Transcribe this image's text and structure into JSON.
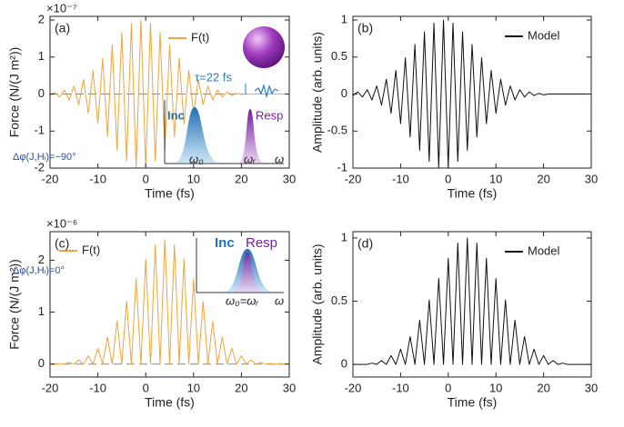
{
  "chart_data": [
    {
      "type": "line",
      "panel_label": "(a)",
      "xlabel": "Time (fs)",
      "ylabel": "Force (N/(J m²))",
      "y_multiplier": "×10⁻⁷",
      "xlim": [
        -20,
        30
      ],
      "xticks": [
        -20,
        -10,
        0,
        10,
        20,
        30
      ],
      "ylim": [
        -2,
        2.1
      ],
      "yticks": [
        -2,
        -1,
        0,
        1,
        2
      ],
      "zero_line": true,
      "legend": "top-center",
      "x": [
        -20,
        -19,
        -18,
        -17,
        -16,
        -15,
        -14,
        -13,
        -12,
        -11,
        -10,
        -9,
        -8,
        -7,
        -6,
        -5,
        -4,
        -3,
        -2,
        -1,
        0,
        1,
        2,
        3,
        4,
        5,
        6,
        7,
        8,
        9,
        10,
        11,
        12,
        13,
        14,
        15,
        16,
        17,
        18,
        19,
        20,
        21,
        22,
        23,
        24,
        25,
        26,
        27,
        28,
        29,
        30
      ],
      "series": [
        {
          "name": "F(t)",
          "color": "#f2a33a",
          "values": [
            -0.03,
            0.05,
            -0.08,
            0.11,
            -0.16,
            0.22,
            -0.29,
            0.39,
            -0.51,
            0.64,
            -0.8,
            0.97,
            -1.15,
            1.33,
            -1.51,
            1.67,
            -1.81,
            1.91,
            -1.98,
            2,
            -1.98,
            1.91,
            -1.81,
            1.67,
            -1.51,
            1.33,
            -1.15,
            0.97,
            -0.8,
            0.64,
            -0.51,
            0.39,
            -0.29,
            0.22,
            -0.16,
            0.11,
            -0.08,
            0.05,
            -0.03,
            0.02,
            -0.01,
            0,
            0,
            0,
            0,
            0,
            0,
            0,
            0,
            0,
            0
          ]
        }
      ],
      "annotations": [
        "Inc",
        "Resp",
        "ω₀",
        "ωᵣ",
        "ω",
        "τ=22 fs",
        "Δφ(J,Hᵢ)=−90°"
      ]
    },
    {
      "type": "line",
      "panel_label": "(b)",
      "xlabel": "Time (fs)",
      "ylabel": "Amplitude (arb. units)",
      "xlim": [
        -20,
        30
      ],
      "xticks": [
        -20,
        -10,
        0,
        10,
        20,
        30
      ],
      "ylim": [
        -1,
        1.05
      ],
      "yticks": [
        -1,
        -0.5,
        0,
        0.5,
        1
      ],
      "zero_line": false,
      "legend": "top-right",
      "x": [
        -20,
        -19,
        -18,
        -17,
        -16,
        -15,
        -14,
        -13,
        -12,
        -11,
        -10,
        -9,
        -8,
        -7,
        -6,
        -5,
        -4,
        -3,
        -2,
        -1,
        0,
        1,
        2,
        3,
        4,
        5,
        6,
        7,
        8,
        9,
        10,
        11,
        12,
        13,
        14,
        15,
        16,
        17,
        18,
        19,
        20,
        21,
        22,
        23,
        24,
        25,
        26,
        27,
        28,
        29,
        30
      ],
      "series": [
        {
          "name": "Model",
          "color": "#111111",
          "values": [
            -0.02,
            0.03,
            -0.04,
            0.06,
            -0.08,
            0.11,
            -0.15,
            0.2,
            -0.26,
            0.32,
            -0.4,
            0.49,
            -0.58,
            0.67,
            -0.76,
            0.84,
            -0.91,
            0.96,
            -0.99,
            1,
            -0.99,
            0.96,
            -0.91,
            0.84,
            -0.76,
            0.67,
            -0.58,
            0.49,
            -0.4,
            0.32,
            -0.26,
            0.2,
            -0.15,
            0.11,
            -0.08,
            0.06,
            -0.04,
            0.03,
            -0.02,
            0.01,
            -0.01,
            0,
            0,
            0,
            0,
            0,
            0,
            0,
            0,
            0,
            0
          ]
        }
      ]
    },
    {
      "type": "line",
      "panel_label": "(c)",
      "xlabel": "Time (fs)",
      "ylabel": "Force (N/(J m²))",
      "y_multiplier": "×10⁻⁶",
      "xlim": [
        -20,
        30
      ],
      "xticks": [
        -20,
        -10,
        0,
        10,
        20,
        30
      ],
      "ylim": [
        -0.25,
        2.55
      ],
      "yticks": [
        0,
        1,
        2
      ],
      "zero_line": true,
      "legend": "top-left",
      "x": [
        -20,
        -19,
        -18,
        -17,
        -16,
        -15,
        -14,
        -13,
        -12,
        -11,
        -10,
        -9,
        -8,
        -7,
        -6,
        -5,
        -4,
        -3,
        -2,
        -1,
        0,
        1,
        2,
        3,
        4,
        5,
        6,
        7,
        8,
        9,
        10,
        11,
        12,
        13,
        14,
        15,
        16,
        17,
        18,
        19,
        20,
        21,
        22,
        23,
        24,
        25,
        26,
        27,
        28,
        29,
        30
      ],
      "series": [
        {
          "name": "F(t)",
          "color": "#f2a33a",
          "values": [
            0.01,
            0,
            0.01,
            0,
            0.03,
            0,
            0.08,
            0,
            0.16,
            0,
            0.3,
            0,
            0.52,
            0,
            0.83,
            0,
            1.21,
            0,
            1.64,
            0,
            2.02,
            0,
            2.3,
            0,
            2.4,
            0,
            2.3,
            0,
            2.02,
            0,
            1.64,
            0,
            1.21,
            0,
            0.83,
            0,
            0.52,
            0,
            0.3,
            0,
            0.16,
            0,
            0.08,
            0,
            0.03,
            0,
            0.01,
            0,
            0.01,
            0,
            0
          ]
        }
      ],
      "annotations": [
        "Inc",
        "Resp",
        "ω₀=ωᵣ",
        "ω",
        "Δφ(J,Hᵢ)=0°"
      ]
    },
    {
      "type": "line",
      "panel_label": "(d)",
      "xlabel": "Time (fs)",
      "ylabel": "Amplitude (arb. units)",
      "xlim": [
        -20,
        30
      ],
      "xticks": [
        -20,
        -10,
        0,
        10,
        20,
        30
      ],
      "ylim": [
        -0.1,
        1.05
      ],
      "yticks": [
        0,
        0.5,
        1
      ],
      "zero_line": false,
      "legend": "top-right",
      "x": [
        -20,
        -19,
        -18,
        -17,
        -16,
        -15,
        -14,
        -13,
        -12,
        -11,
        -10,
        -9,
        -8,
        -7,
        -6,
        -5,
        -4,
        -3,
        -2,
        -1,
        0,
        1,
        2,
        3,
        4,
        5,
        6,
        7,
        8,
        9,
        10,
        11,
        12,
        13,
        14,
        15,
        16,
        17,
        18,
        19,
        20,
        21,
        22,
        23,
        24,
        25,
        26,
        27,
        28,
        29,
        30
      ],
      "series": [
        {
          "name": "Model",
          "color": "#111111",
          "values": [
            0,
            0,
            0,
            0,
            0.01,
            0,
            0.03,
            0,
            0.07,
            0,
            0.12,
            0,
            0.22,
            0,
            0.35,
            0,
            0.51,
            0,
            0.68,
            0,
            0.84,
            0,
            0.96,
            0,
            1,
            0,
            0.96,
            0,
            0.84,
            0,
            0.68,
            0,
            0.51,
            0,
            0.35,
            0,
            0.22,
            0,
            0.12,
            0,
            0.07,
            0,
            0.03,
            0,
            0.01,
            0,
            0,
            0,
            0,
            0,
            0
          ]
        }
      ]
    }
  ]
}
